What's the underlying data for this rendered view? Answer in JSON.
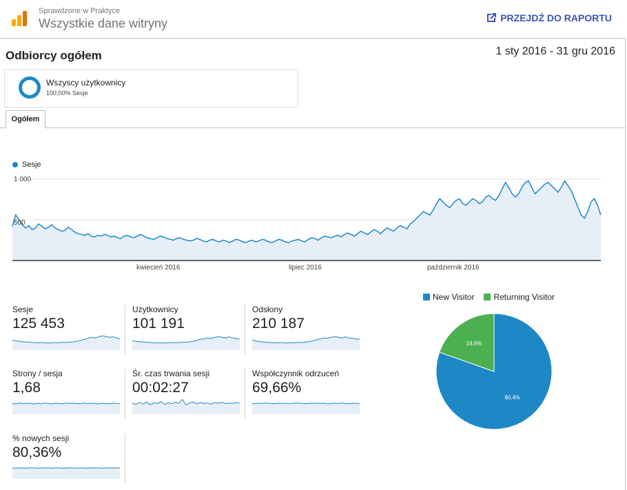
{
  "header": {
    "subtitle": "Sprawdzone w Praktyce",
    "title": "Wszystkie dane witryny",
    "goto_label": "PRZEJDŹ DO RAPORTU"
  },
  "section": {
    "title": "Odbiorcy ogółem",
    "date_range": "1 sty 2016 - 31 gru 2016"
  },
  "segment": {
    "name": "Wszyscy użytkownicy",
    "share": "100,00% Sesje"
  },
  "tabs": [
    {
      "label": "Ogółem"
    }
  ],
  "colors": {
    "series": "#1e88c7",
    "area": "#e6eef8",
    "new_visitor": "#1e88c7",
    "returning_visitor": "#4caf50",
    "link": "#3f51b5"
  },
  "chart_data": [
    {
      "type": "area",
      "legend": "Sesje",
      "y_ticks": [
        "1 000",
        "500"
      ],
      "ylim": [
        0,
        1000
      ],
      "x_ticks": [
        "kwiecień 2016",
        "lipiec 2016",
        "październik 2016"
      ],
      "series": [
        {
          "name": "Sesje",
          "values": [
            420,
            560,
            500,
            440,
            400,
            430,
            380,
            400,
            450,
            420,
            390,
            410,
            440,
            400,
            380,
            360,
            370,
            410,
            380,
            350,
            330,
            320,
            310,
            330,
            300,
            290,
            310,
            300,
            320,
            310,
            290,
            300,
            280,
            270,
            300,
            310,
            290,
            280,
            300,
            320,
            300,
            280,
            270,
            260,
            280,
            300,
            290,
            270,
            260,
            250,
            270,
            280,
            260,
            250,
            240,
            250,
            270,
            260,
            240,
            230,
            250,
            260,
            240,
            230,
            250,
            240,
            220,
            240,
            260,
            250,
            230,
            220,
            240,
            250,
            230,
            240,
            260,
            250,
            230,
            220,
            240,
            260,
            250,
            230,
            220,
            240,
            250,
            260,
            240,
            230,
            260,
            280,
            270,
            250,
            280,
            300,
            290,
            280,
            300,
            310,
            290,
            320,
            340,
            320,
            300,
            330,
            360,
            340,
            320,
            350,
            380,
            360,
            330,
            370,
            400,
            380,
            360,
            400,
            430,
            410,
            390,
            450,
            480,
            520,
            560,
            600,
            580,
            560,
            620,
            700,
            760,
            720,
            680,
            650,
            700,
            740,
            760,
            700,
            680,
            720,
            760,
            740,
            700,
            720,
            780,
            800,
            760,
            740,
            800,
            880,
            960,
            900,
            820,
            780,
            820,
            900,
            960,
            980,
            900,
            820,
            860,
            900,
            940,
            960,
            920,
            880,
            840,
            900,
            980,
            920,
            860,
            760,
            660,
            560,
            520,
            600,
            720,
            760,
            680,
            560
          ]
        }
      ]
    },
    {
      "type": "pie",
      "slices": [
        {
          "name": "New Visitor",
          "value": 80.4,
          "label": "80,4%"
        },
        {
          "name": "Returning Visitor",
          "value": 19.6,
          "label": "19,6%"
        }
      ]
    }
  ],
  "metrics": [
    {
      "label": "Sesje",
      "value": "125 453",
      "trend": [
        40,
        38,
        36,
        34,
        33,
        32,
        31,
        30,
        31,
        30,
        29,
        30,
        31,
        30,
        32,
        31,
        33,
        34,
        36,
        40,
        44,
        48,
        52,
        50,
        54,
        58,
        56,
        52,
        55,
        50,
        46
      ]
    },
    {
      "label": "Użytkownicy",
      "value": "101 191",
      "trend": [
        38,
        36,
        34,
        33,
        32,
        31,
        30,
        29,
        30,
        29,
        30,
        31,
        30,
        31,
        32,
        33,
        34,
        36,
        40,
        44,
        46,
        50,
        48,
        52,
        55,
        53,
        50,
        54,
        50,
        47,
        45
      ]
    },
    {
      "label": "Odsłony",
      "value": "210 187",
      "trend": [
        42,
        38,
        35,
        33,
        32,
        31,
        30,
        30,
        31,
        30,
        29,
        31,
        30,
        32,
        31,
        33,
        35,
        38,
        42,
        46,
        50,
        48,
        52,
        55,
        53,
        50,
        54,
        50,
        48,
        46,
        44
      ]
    },
    {
      "label": "Strony / sesja",
      "value": "1,68",
      "trend": [
        44,
        42,
        46,
        43,
        45,
        44,
        42,
        45,
        43,
        46,
        44,
        42,
        45,
        44,
        43,
        46,
        44,
        45,
        43,
        44,
        46,
        43,
        45,
        44,
        42,
        45,
        44,
        43,
        45,
        44,
        43
      ]
    },
    {
      "label": "Śr. czas trwania sesji",
      "value": "00:02:27",
      "trend": [
        46,
        40,
        48,
        42,
        50,
        38,
        46,
        44,
        52,
        40,
        47,
        43,
        49,
        45,
        60,
        38,
        46,
        50,
        42,
        48,
        44,
        46,
        41,
        47,
        45,
        49,
        43,
        46,
        44,
        48,
        45
      ]
    },
    {
      "label": "Współczynnik odrzuceń",
      "value": "69,66%",
      "trend": [
        44,
        43,
        45,
        44,
        46,
        44,
        43,
        45,
        44,
        45,
        43,
        44,
        46,
        45,
        44,
        43,
        45,
        44,
        46,
        44,
        45,
        43,
        44,
        45,
        44,
        46,
        44,
        43,
        45,
        44,
        44
      ]
    },
    {
      "label": "% nowych sesji",
      "value": "80,36%",
      "trend": [
        45,
        44,
        45,
        45,
        44,
        46,
        45,
        44,
        45,
        45,
        46,
        44,
        45,
        45,
        44,
        45,
        46,
        45,
        44,
        45,
        45,
        44,
        46,
        45,
        45,
        44,
        45,
        45,
        46,
        45,
        45
      ]
    }
  ]
}
